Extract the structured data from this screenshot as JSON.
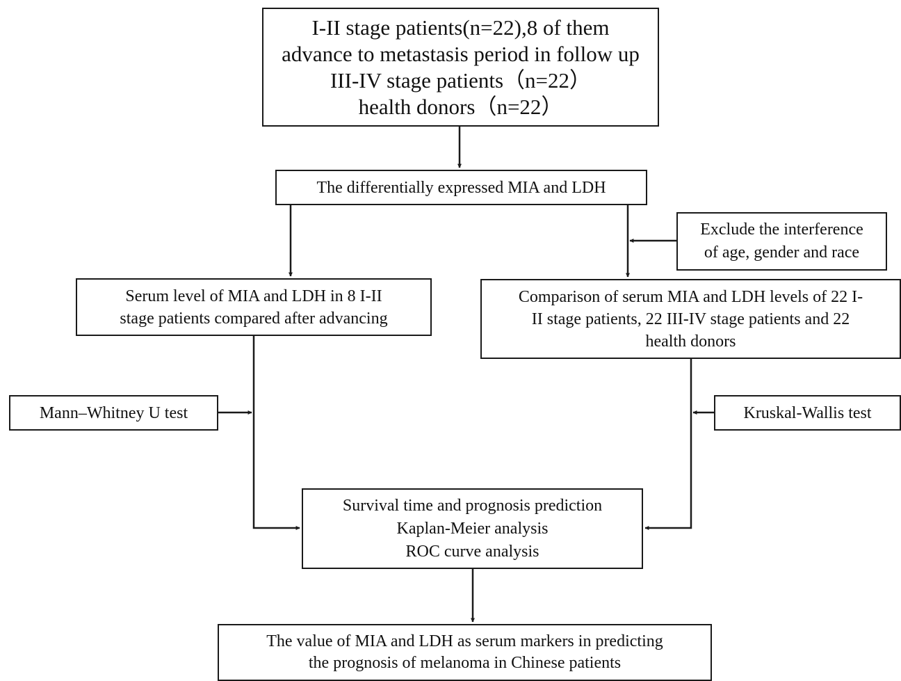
{
  "flowchart": {
    "cohort_box": {
      "lines": [
        "I-II stage patients(n=22),8 of them",
        "advance to metastasis period in follow up",
        "III-IV stage patients（n=22）",
        "health donors（n=22）"
      ]
    },
    "diff_box": {
      "lines": [
        "The differentially expressed MIA and LDH"
      ]
    },
    "exclude_box": {
      "lines": [
        "Exclude the interference",
        "of age, gender and race"
      ]
    },
    "serum_box": {
      "lines": [
        "Serum level of MIA and LDH in 8 I-II",
        "stage patients compared after advancing"
      ]
    },
    "compare_box": {
      "lines": [
        "Comparison of serum MIA and LDH levels of 22 I-",
        "II stage patients, 22 III-IV stage patients and 22",
        "health donors"
      ]
    },
    "mann_box": {
      "lines": [
        "Mann–Whitney U test"
      ]
    },
    "kruskal_box": {
      "lines": [
        "Kruskal-Wallis test"
      ]
    },
    "survival_box": {
      "lines": [
        "Survival time and prognosis prediction",
        "Kaplan-Meier analysis",
        "ROC curve analysis"
      ]
    },
    "value_box": {
      "lines": [
        "The value of MIA and LDH as serum markers in predicting",
        "the prognosis of melanoma in Chinese patients"
      ]
    }
  },
  "colors": {
    "stroke": "#1a1a1a",
    "text": "#111111",
    "background": "#ffffff"
  }
}
